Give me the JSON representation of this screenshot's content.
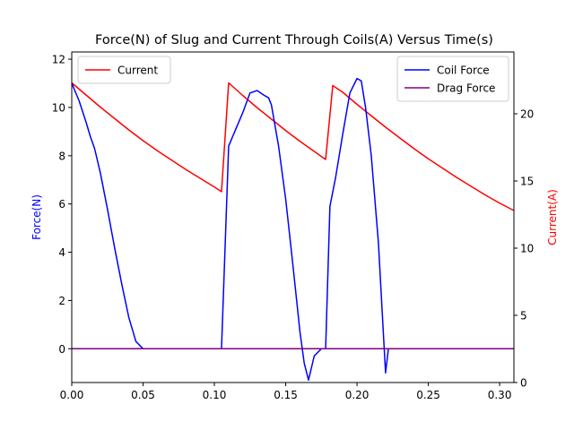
{
  "chart_data": {
    "type": "line",
    "title": "Force(N) of Slug and Current Through Coils(A) Versus Time(s)",
    "xlabel": "",
    "ylabel_left": "Force(N)",
    "ylabel_right": "Current(A)",
    "xlim": [
      0,
      0.31
    ],
    "ylim_left": [
      -1.4,
      12.3
    ],
    "ylim_right": [
      0,
      24.6
    ],
    "x_ticks": [
      0.0,
      0.05,
      0.1,
      0.15,
      0.2,
      0.25,
      0.3
    ],
    "x_tick_labels": [
      "0.00",
      "0.05",
      "0.10",
      "0.15",
      "0.20",
      "0.25",
      "0.30"
    ],
    "y_left_ticks": [
      0,
      2,
      4,
      6,
      8,
      10,
      12
    ],
    "y_left_tick_labels": [
      "0",
      "2",
      "4",
      "6",
      "8",
      "10",
      "12"
    ],
    "y_right_ticks": [
      0,
      5,
      10,
      15,
      20
    ],
    "y_right_tick_labels": [
      "0",
      "5",
      "10",
      "15",
      "20"
    ],
    "grid": false,
    "legend_left_placement": "upper-left",
    "legend_right_placement": "upper-right",
    "colors": {
      "current": "#ff0000",
      "coil_force": "#0000ff",
      "drag_force": "#800080",
      "left_label": "#0000ff",
      "right_label": "#ff0000"
    },
    "series": [
      {
        "name": "Current",
        "axis": "right",
        "color": "#ff0000",
        "x": [
          0.0,
          0.01,
          0.02,
          0.03,
          0.04,
          0.05,
          0.06,
          0.07,
          0.08,
          0.09,
          0.1,
          0.105,
          0.11,
          0.12,
          0.13,
          0.14,
          0.15,
          0.16,
          0.17,
          0.178,
          0.183,
          0.19,
          0.2,
          0.21,
          0.22,
          0.23,
          0.24,
          0.25,
          0.26,
          0.27,
          0.28,
          0.29,
          0.3,
          0.31
        ],
        "y": [
          22.3,
          21.4,
          20.5,
          19.65,
          18.8,
          18.0,
          17.25,
          16.55,
          15.85,
          15.2,
          14.55,
          14.2,
          22.3,
          21.35,
          20.45,
          19.6,
          18.75,
          17.95,
          17.2,
          16.6,
          22.1,
          21.6,
          20.7,
          19.85,
          19.0,
          18.2,
          17.4,
          16.65,
          15.95,
          15.25,
          14.6,
          13.95,
          13.35,
          12.8
        ]
      },
      {
        "name": "Coil Force",
        "axis": "left",
        "color": "#0000ff",
        "x": [
          0.0,
          0.005,
          0.01,
          0.013,
          0.016,
          0.02,
          0.025,
          0.03,
          0.035,
          0.04,
          0.045,
          0.05,
          0.06,
          0.08,
          0.1,
          0.105,
          0.11,
          0.115,
          0.12,
          0.125,
          0.13,
          0.135,
          0.138,
          0.14,
          0.145,
          0.15,
          0.155,
          0.16,
          0.163,
          0.166,
          0.17,
          0.175,
          0.178,
          0.181,
          0.185,
          0.19,
          0.195,
          0.2,
          0.203,
          0.206,
          0.21,
          0.215,
          0.22,
          0.222,
          0.23,
          0.26,
          0.31
        ],
        "y": [
          11.0,
          10.3,
          9.4,
          8.8,
          8.3,
          7.3,
          5.8,
          4.2,
          2.7,
          1.3,
          0.3,
          0.0,
          0.0,
          0.0,
          0.0,
          0.0,
          8.4,
          9.1,
          9.8,
          10.6,
          10.7,
          10.5,
          10.4,
          10.1,
          8.4,
          6.2,
          3.5,
          0.7,
          -0.6,
          -1.3,
          -0.3,
          0.0,
          0.0,
          5.9,
          7.1,
          8.9,
          10.6,
          11.2,
          11.1,
          10.0,
          8.0,
          4.4,
          -1.0,
          0.0,
          0.0,
          0.0,
          0.0
        ]
      },
      {
        "name": "Drag Force",
        "axis": "left",
        "color": "#800080",
        "x": [
          0.0,
          0.31
        ],
        "y": [
          0.0,
          0.0
        ]
      }
    ]
  }
}
